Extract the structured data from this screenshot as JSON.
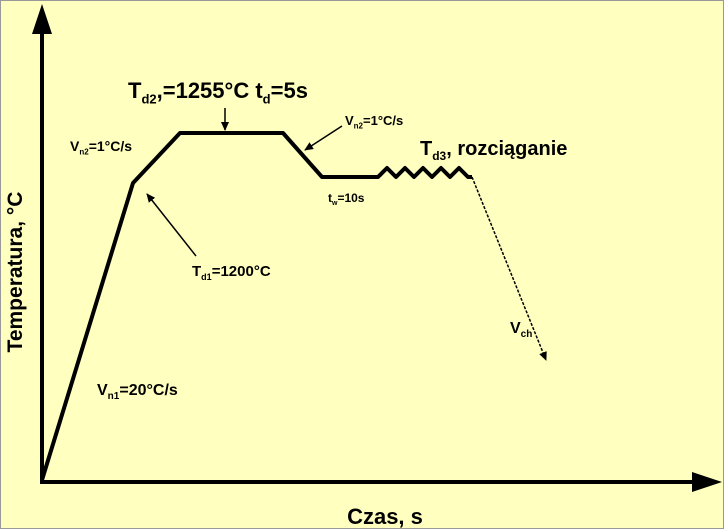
{
  "axes": {
    "y_label": "Temperatura, °C",
    "x_label": "Czas, s"
  },
  "labels": [
    {
      "id": "td2",
      "parts": [
        "T",
        "d2",
        ",=1255°C t",
        "d",
        "=5s"
      ]
    },
    {
      "id": "vn2-left",
      "parts": [
        "V",
        "n2",
        "=1°C/s"
      ]
    },
    {
      "id": "vn2-right",
      "parts": [
        "V",
        "n2",
        "=1°C/s"
      ]
    },
    {
      "id": "td3",
      "parts": [
        "T",
        "d3",
        ", rozciąganie"
      ]
    },
    {
      "id": "tw",
      "parts": [
        "t",
        "w",
        "=10s"
      ]
    },
    {
      "id": "td1",
      "parts": [
        "T",
        "d1",
        "=1200°C"
      ]
    },
    {
      "id": "vch",
      "parts": [
        "V",
        "ch"
      ]
    },
    {
      "id": "vn1",
      "parts": [
        "V",
        "n1",
        "=20°C/s"
      ]
    }
  ]
}
